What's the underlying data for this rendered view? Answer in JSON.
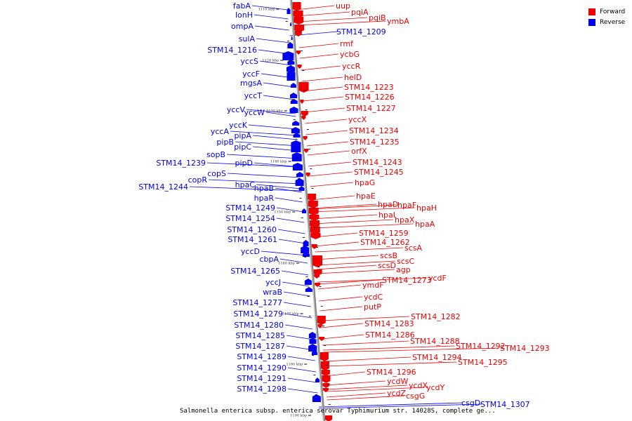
{
  "caption": "Salmonella enterica subsp. enterica serovar Typhimurium str. 14028S, complete ge...",
  "legend": [
    {
      "label": "Forward",
      "color": "#ee0000"
    },
    {
      "label": "Reverse",
      "color": "#0000ee"
    }
  ],
  "ticks": [
    "1110 kbp",
    "1120 kbp",
    "1130 kbp",
    "1140 kbp",
    "1150 kbp",
    "1160 kbp",
    "1170 kbp",
    "1180 kbp",
    "1190 kbp"
  ],
  "reverse_genes": [
    "fabA",
    "lonH",
    "ompA",
    "sulA",
    "STM14_1216",
    "yccS",
    "yccF",
    "mgsA",
    "yccT",
    "yccV",
    "yccW",
    "yccK",
    "yccA",
    "pipA",
    "pipB",
    "pipC",
    "sopB",
    "STM14_1239",
    "pipD",
    "copS",
    "copR",
    "hpaC",
    "STM14_1244",
    "hpaB",
    "hpaR",
    "STM14_1249",
    "STM14_1254",
    "STM14_1260",
    "STM14_1261",
    "yccD",
    "cbpA",
    "STM14_1265",
    "yccJ",
    "wraB",
    "STM14_1277",
    "STM14_1279",
    "STM14_1280",
    "STM14_1285",
    "STM14_1287",
    "STM14_1289",
    "STM14_1290",
    "STM14_1291",
    "STM14_1298",
    "STM14_1209",
    "csgD",
    "STM14_1307"
  ],
  "forward_genes": [
    "uup",
    "pqiA",
    "pqiB",
    "ymbA",
    "rmf",
    "ycbG",
    "yccR",
    "helD",
    "STM14_1223",
    "STM14_1226",
    "STM14_1227",
    "yccX",
    "STM14_1234",
    "STM14_1235",
    "orfX",
    "STM14_1243",
    "STM14_1245",
    "hpaG",
    "hpaE",
    "hpaD",
    "hpaF",
    "hpaH",
    "hpaI",
    "hpaX",
    "hpaA",
    "STM14_1259",
    "STM14_1262",
    "scsA",
    "scsB",
    "scsC",
    "scsD",
    "agp",
    "STM14_1273",
    "ycdF",
    "ymdF",
    "ycdC",
    "putP",
    "STM14_1282",
    "STM14_1283",
    "STM14_1286",
    "STM14_1288",
    "STM14_1292",
    "STM14_1293",
    "STM14_1294",
    "STM14_1295",
    "STM14_1296",
    "ycdW",
    "ycdX",
    "ycdY",
    "ycdZ",
    "csgG"
  ]
}
